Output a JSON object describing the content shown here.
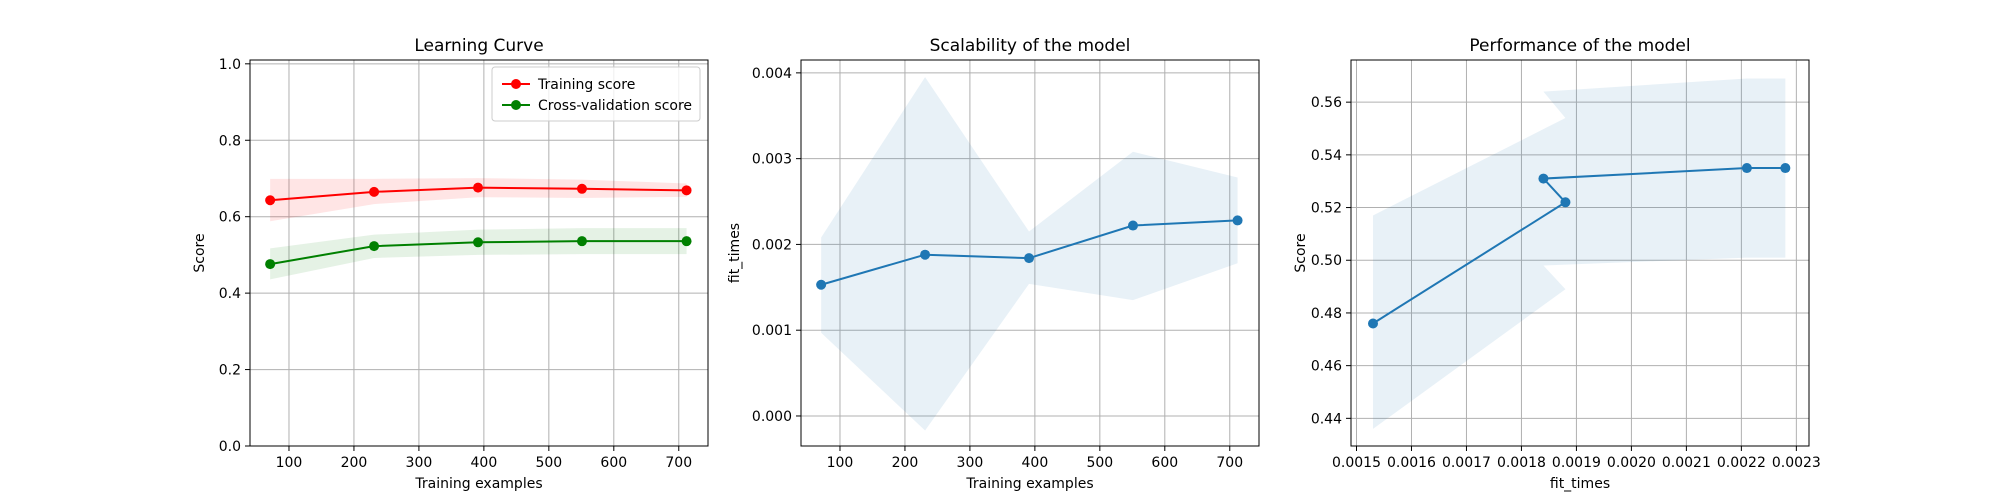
{
  "chart_data": [
    {
      "type": "line",
      "title": "Learning Curve",
      "xlabel": "Training examples",
      "ylabel": "Score",
      "xlim": [
        40,
        745
      ],
      "ylim": [
        0.0,
        1.01
      ],
      "xticks": [
        100,
        200,
        300,
        400,
        500,
        600,
        700
      ],
      "xtick_labels": [
        "100",
        "200",
        "300",
        "400",
        "500",
        "600",
        "700"
      ],
      "yticks": [
        0.0,
        0.2,
        0.4,
        0.6,
        0.8,
        1.0
      ],
      "ytick_labels": [
        "0.0",
        "0.2",
        "0.4",
        "0.6",
        "0.8",
        "1.0"
      ],
      "grid": true,
      "legend": "top-right",
      "x": [
        71,
        231,
        391,
        551,
        712
      ],
      "series": [
        {
          "name": "Training score",
          "color": "#ff0000",
          "values": [
            0.643,
            0.665,
            0.676,
            0.673,
            0.669
          ],
          "band_low": [
            0.588,
            0.633,
            0.651,
            0.649,
            0.652
          ],
          "band_high": [
            0.699,
            0.699,
            0.701,
            0.697,
            0.687
          ]
        },
        {
          "name": "Cross-validation score",
          "color": "#008000",
          "values": [
            0.476,
            0.523,
            0.533,
            0.536,
            0.536
          ],
          "band_low": [
            0.436,
            0.492,
            0.5,
            0.502,
            0.502
          ],
          "band_high": [
            0.517,
            0.553,
            0.566,
            0.57,
            0.57
          ]
        }
      ]
    },
    {
      "type": "line",
      "title": "Scalability of the model",
      "xlabel": "Training examples",
      "ylabel": "fit_times",
      "xlim": [
        40,
        745
      ],
      "ylim": [
        -0.00035,
        0.00415
      ],
      "xticks": [
        100,
        200,
        300,
        400,
        500,
        600,
        700
      ],
      "xtick_labels": [
        "100",
        "200",
        "300",
        "400",
        "500",
        "600",
        "700"
      ],
      "yticks": [
        0.0,
        0.001,
        0.002,
        0.003,
        0.004
      ],
      "ytick_labels": [
        "0.000",
        "0.001",
        "0.002",
        "0.003",
        "0.004"
      ],
      "grid": true,
      "x": [
        71,
        231,
        391,
        551,
        712
      ],
      "series": [
        {
          "color": "#1f77b4",
          "values": [
            0.00153,
            0.00188,
            0.00184,
            0.00222,
            0.00228
          ],
          "band_low": [
            0.00097,
            -0.00017,
            0.00154,
            0.00135,
            0.00178
          ],
          "band_high": [
            0.00208,
            0.00395,
            0.00215,
            0.00308,
            0.00278
          ]
        }
      ]
    },
    {
      "type": "line",
      "title": "Performance of the model",
      "xlabel": "fit_times",
      "ylabel": "Score",
      "xlim": [
        0.00149,
        0.002323
      ],
      "ylim": [
        0.4295,
        0.576
      ],
      "xticks": [
        0.0015,
        0.0016,
        0.0017,
        0.0018,
        0.0019,
        0.002,
        0.0021,
        0.0022,
        0.0023
      ],
      "xtick_labels": [
        "0.0015",
        "0.0016",
        "0.0017",
        "0.0018",
        "0.0019",
        "0.0020",
        "0.0021",
        "0.0022",
        "0.0023"
      ],
      "yticks": [
        0.44,
        0.46,
        0.48,
        0.5,
        0.52,
        0.54,
        0.56
      ],
      "ytick_labels": [
        "0.44",
        "0.46",
        "0.48",
        "0.50",
        "0.52",
        "0.54",
        "0.56"
      ],
      "grid": true,
      "x": [
        0.00153,
        0.00188,
        0.00184,
        0.00221,
        0.00228
      ],
      "series": [
        {
          "color": "#1f77b4",
          "values": [
            0.476,
            0.522,
            0.531,
            0.535,
            0.535
          ],
          "band_low": [
            0.436,
            0.489,
            0.498,
            0.501,
            0.501
          ],
          "band_high": [
            0.517,
            0.554,
            0.564,
            0.569,
            0.569
          ]
        }
      ]
    }
  ]
}
